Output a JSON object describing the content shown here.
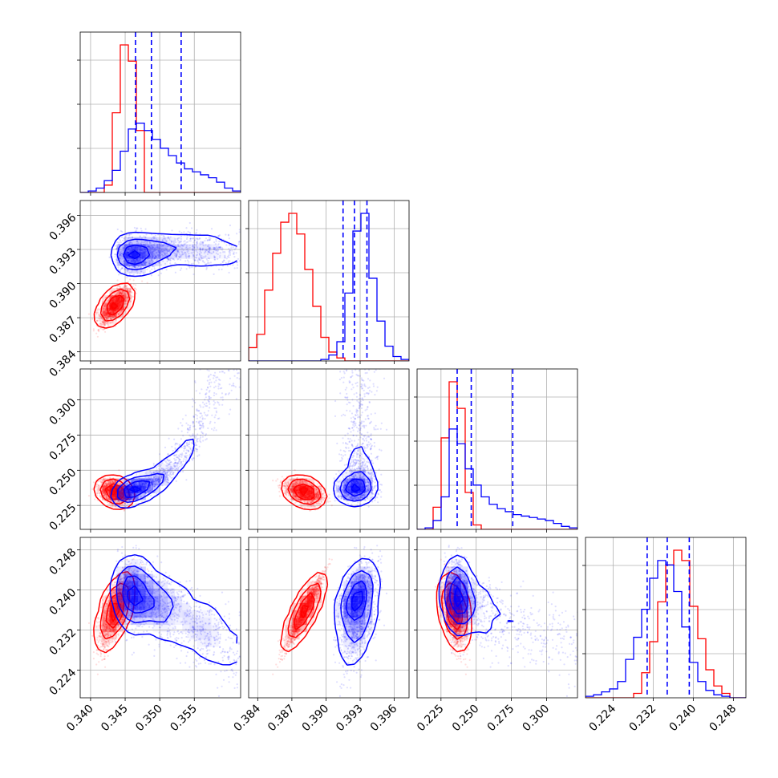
{
  "chart_data": {
    "type": "corner",
    "grid": true,
    "colors": {
      "red": "#ff0000",
      "blue": "#0000ff"
    },
    "series": [
      {
        "name": "",
        "color": "#ff0000"
      },
      {
        "name": "",
        "color": "#0000ff"
      }
    ],
    "parameters": [
      {
        "range": [
          0.3385,
          0.3617
        ],
        "ticks": [
          "0.340",
          "0.345",
          "0.350",
          "0.355"
        ],
        "tick_values": [
          0.34,
          0.345,
          0.35,
          0.355
        ]
      },
      {
        "range": [
          0.3832,
          0.3973
        ],
        "ticks": [
          "0.384",
          "0.387",
          "0.390",
          "0.393",
          "0.396"
        ],
        "tick_values": [
          0.384,
          0.387,
          0.39,
          0.393,
          0.396
        ]
      },
      {
        "range": [
          0.208,
          0.322
        ],
        "ticks": [
          "0.225",
          "0.250",
          "0.275",
          "0.300"
        ],
        "tick_values": [
          0.225,
          0.25,
          0.275,
          0.3
        ]
      },
      {
        "range": [
          0.2185,
          0.2505
        ],
        "ticks": [
          "0.224",
          "0.232",
          "0.240",
          "0.248"
        ],
        "tick_values": [
          0.224,
          0.232,
          0.24,
          0.248
        ]
      }
    ],
    "quantiles_blue": [
      [
        0.3465,
        0.3488,
        0.3531
      ],
      [
        0.3915,
        0.3925,
        0.3936
      ],
      [
        0.2365,
        0.2465,
        0.276
      ],
      [
        0.2308,
        0.2348,
        0.2392
      ]
    ],
    "hist_red": [
      [
        0,
        0,
        0,
        0.05,
        0.54,
        1.0,
        0.89,
        0.42,
        0.0,
        0,
        0,
        0,
        0,
        0,
        0,
        0,
        0,
        0,
        0,
        0
      ],
      [
        0.09,
        0.18,
        0.48,
        0.73,
        0.94,
        1.0,
        0.86,
        0.62,
        0.37,
        0.16,
        0.06,
        0.02,
        0,
        0,
        0,
        0,
        0,
        0,
        0,
        0
      ],
      [
        0,
        0,
        0.15,
        0.62,
        1.0,
        0.82,
        0.25,
        0.03,
        0,
        0,
        0,
        0,
        0,
        0,
        0,
        0,
        0,
        0,
        0,
        0
      ],
      [
        0,
        0,
        0,
        0,
        0,
        0,
        0.03,
        0.17,
        0.38,
        0.65,
        0.9,
        1.0,
        0.93,
        0.62,
        0.4,
        0.19,
        0.08,
        0.03,
        0,
        0
      ]
    ],
    "hist_blue": [
      [
        0,
        0.01,
        0.03,
        0.08,
        0.15,
        0.28,
        0.43,
        0.47,
        0.42,
        0.36,
        0.3,
        0.25,
        0.2,
        0.16,
        0.14,
        0.12,
        0.1,
        0.07,
        0.03,
        0.01
      ],
      [
        0,
        0,
        0,
        0,
        0,
        0,
        0,
        0,
        0,
        0.01,
        0.04,
        0.13,
        0.46,
        0.88,
        1.0,
        0.56,
        0.27,
        0.1,
        0.03,
        0.01
      ],
      [
        0,
        0.01,
        0.06,
        0.22,
        0.68,
        0.58,
        0.41,
        0.3,
        0.22,
        0.17,
        0.14,
        0.12,
        0.1,
        0.09,
        0.08,
        0.07,
        0.06,
        0.04,
        0.02,
        0.01
      ],
      [
        0.01,
        0.02,
        0.04,
        0.06,
        0.11,
        0.26,
        0.41,
        0.6,
        0.81,
        0.93,
        0.9,
        0.72,
        0.48,
        0.24,
        0.11,
        0.05,
        0.02,
        0.01,
        0,
        0
      ]
    ]
  }
}
